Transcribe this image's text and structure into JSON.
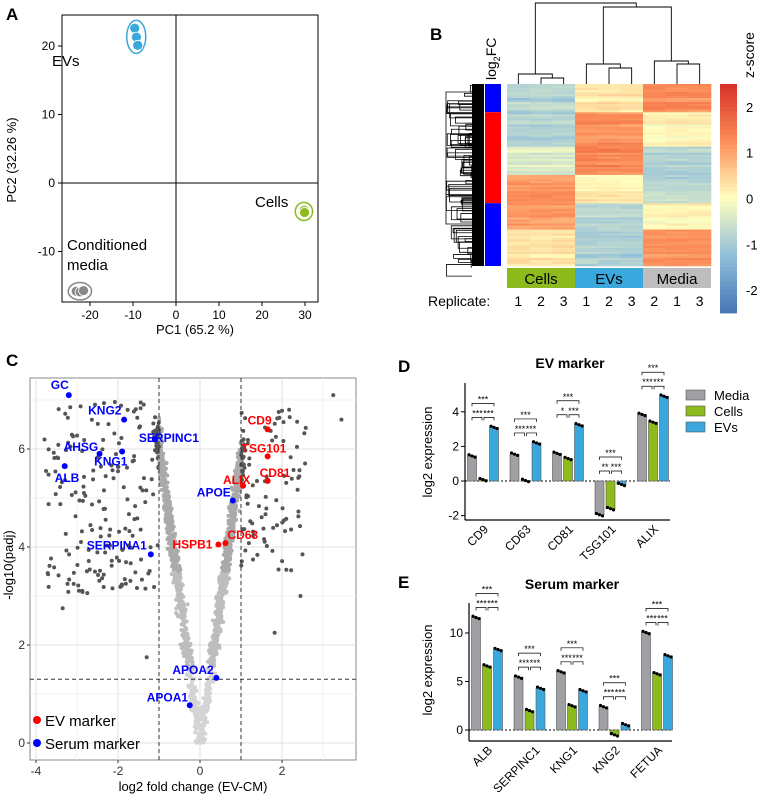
{
  "panels": {
    "a": "A",
    "b": "B",
    "c": "C",
    "d": "D",
    "e": "E"
  },
  "chart_data": [
    {
      "type": "scatter",
      "panel": "A",
      "xlabel": "PC1 (65.2 %)",
      "ylabel": "PC2 (32.26 %)",
      "xticks": [
        "-20",
        "-10",
        "0",
        "10",
        "20",
        "30"
      ],
      "yticks": [
        "20",
        "10",
        "0",
        "-10"
      ],
      "xlim": [
        -26,
        33
      ],
      "ylim": [
        -20,
        24.5
      ],
      "groups": [
        {
          "name": "EVs",
          "label": "EVs",
          "color": "#3aa8dc",
          "points": [
            [
              -9.6,
              22.6
            ],
            [
              -9.2,
              21.3
            ],
            [
              -8.9,
              20.1
            ]
          ]
        },
        {
          "name": "Cells",
          "label": "Cells",
          "color": "#8dbb1e",
          "points": [
            [
              29.6,
              -4.2
            ],
            [
              29.8,
              -4.0
            ],
            [
              29.9,
              -4.3
            ]
          ]
        },
        {
          "name": "Conditioned media",
          "label": "Conditioned",
          "label2": "media",
          "color": "#888888",
          "points": [
            [
              -23.2,
              -15.8
            ],
            [
              -22.3,
              -15.9
            ],
            [
              -21.5,
              -15.7
            ]
          ]
        }
      ]
    },
    {
      "type": "heatmap",
      "panel": "B",
      "fc_label": "log",
      "fc_sub": "2",
      "fc_label_end": "FC",
      "colorbar_title": "z-score",
      "colorbar_ticks": [
        "2",
        "1",
        "0",
        "-1",
        "-2"
      ],
      "colorbar_range": [
        -2.5,
        2.5
      ],
      "groups": [
        {
          "label": "Cells",
          "color": "#8dbb1e"
        },
        {
          "label": "EVs",
          "color": "#3aa8dc"
        },
        {
          "label": "Media",
          "color": "#bdbdbd"
        }
      ],
      "replicate_title": "Replicate:",
      "replicates": [
        "1",
        "2",
        "3",
        "1",
        "2",
        "3",
        "2",
        "1",
        "3"
      ],
      "fc_blocks": [
        {
          "from": 0.0,
          "to": 0.155,
          "color": "#0000ff"
        },
        {
          "from": 0.155,
          "to": 0.655,
          "color": "#ff0000"
        },
        {
          "from": 0.655,
          "to": 1.0,
          "color": "#0000ff"
        }
      ],
      "row_blocks": [
        {
          "from": 0.0,
          "to": 0.155,
          "z": [
            -0.8,
            0.3,
            1.3
          ]
        },
        {
          "from": 0.155,
          "to": 0.35,
          "z": [
            -0.9,
            1.2,
            0.1
          ]
        },
        {
          "from": 0.35,
          "to": 0.5,
          "z": [
            -0.4,
            1.3,
            -0.9
          ]
        },
        {
          "from": 0.5,
          "to": 0.655,
          "z": [
            1.1,
            0.1,
            -0.8
          ]
        },
        {
          "from": 0.655,
          "to": 0.8,
          "z": [
            1.1,
            -0.8,
            0.1
          ]
        },
        {
          "from": 0.8,
          "to": 1.0,
          "z": [
            0.3,
            -0.9,
            1.2
          ]
        }
      ]
    },
    {
      "type": "scatter",
      "panel": "C",
      "xlabel": "log2 fold change (EV-CM)",
      "ylabel": "-log10(padj)",
      "xticks": [
        "-4",
        "-2",
        "0",
        "2"
      ],
      "yticks": [
        "0",
        "2",
        "4",
        "6"
      ],
      "xlim": [
        -4.1,
        3.8
      ],
      "ylim": [
        -0.35,
        7.45
      ],
      "thresholds": {
        "x": [
          -1,
          1
        ],
        "y": 1.3
      },
      "legend": [
        {
          "label": "EV marker",
          "color": "#ff0000"
        },
        {
          "label": "Serum marker",
          "color": "#0000ff"
        }
      ],
      "labeled_points": [
        {
          "label": "GC",
          "x": -3.2,
          "y": 7.1,
          "type": "serum"
        },
        {
          "label": "KNG2",
          "x": -1.85,
          "y": 6.6,
          "type": "serum"
        },
        {
          "label": "AHSG",
          "x": -2.45,
          "y": 5.9,
          "type": "serum"
        },
        {
          "label": "KNG1",
          "x": -1.9,
          "y": 5.95,
          "type": "serum"
        },
        {
          "label": "ALB",
          "x": -3.3,
          "y": 5.65,
          "type": "serum"
        },
        {
          "label": "SERPINC1",
          "x": -1.1,
          "y": 6.2,
          "type": "serum"
        },
        {
          "label": "SERPINA1",
          "x": -1.2,
          "y": 3.85,
          "type": "serum"
        },
        {
          "label": "APOE",
          "x": 0.8,
          "y": 4.95,
          "type": "serum"
        },
        {
          "label": "APOA2",
          "x": 0.4,
          "y": 1.33,
          "type": "serum"
        },
        {
          "label": "APOA1",
          "x": -0.25,
          "y": 0.77,
          "type": "serum"
        },
        {
          "label": "CD9",
          "x": 1.65,
          "y": 6.4,
          "type": "ev"
        },
        {
          "label": "TSG101",
          "x": 1.65,
          "y": 5.85,
          "type": "ev"
        },
        {
          "label": "CD81",
          "x": 1.65,
          "y": 5.35,
          "type": "ev"
        },
        {
          "label": "ALIX",
          "x": 1.05,
          "y": 5.25,
          "type": "ev"
        },
        {
          "label": "CD63",
          "x": 0.62,
          "y": 4.08,
          "type": "ev"
        },
        {
          "label": "HSPB1",
          "x": 0.45,
          "y": 4.05,
          "type": "ev"
        }
      ]
    },
    {
      "type": "bar",
      "panel": "D",
      "title": "EV marker",
      "ylabel": "log2 expression",
      "yticks": [
        -2,
        0,
        2,
        4
      ],
      "ylim": [
        -2.3,
        5.5
      ],
      "series_names": [
        "Media",
        "Cells",
        "EVs"
      ],
      "series_colors": [
        "#a0a0a4",
        "#8dbb1e",
        "#3aa8dc"
      ],
      "categories": [
        "CD9",
        "CD63",
        "CD81",
        "TSG101",
        "ALIX"
      ],
      "values": [
        [
          1.45,
          0.08,
          3.1
        ],
        [
          1.55,
          0.03,
          2.2
        ],
        [
          1.6,
          1.3,
          3.25
        ],
        [
          -1.95,
          -1.6,
          -0.2
        ],
        [
          3.85,
          3.4,
          4.9
        ]
      ],
      "significance": [
        [
          "***",
          "***",
          "***"
        ],
        [
          "***",
          "***",
          "***"
        ],
        [
          "*",
          "***",
          "***"
        ],
        [
          "**",
          "***",
          "***"
        ],
        [
          "***",
          "***",
          "***"
        ]
      ]
    },
    {
      "type": "bar",
      "panel": "E",
      "title": "Serum marker",
      "ylabel": "log2 expression",
      "yticks": [
        0,
        5,
        10
      ],
      "ylim": [
        -1,
        13
      ],
      "series_names": [
        "Media",
        "Cells",
        "EVs"
      ],
      "series_colors": [
        "#a0a0a4",
        "#8dbb1e",
        "#3aa8dc"
      ],
      "categories": [
        "ALB",
        "SERPINC1",
        "KNG1",
        "KNG2",
        "FETUA"
      ],
      "values": [
        [
          11.6,
          6.6,
          8.3
        ],
        [
          5.45,
          2.0,
          4.3
        ],
        [
          6.0,
          2.5,
          4.05
        ],
        [
          2.4,
          -0.5,
          0.55
        ],
        [
          10.05,
          5.8,
          7.65
        ]
      ],
      "significance": [
        [
          "***",
          "***",
          "***"
        ],
        [
          "***",
          "***",
          "***"
        ],
        [
          "***",
          "***",
          "***"
        ],
        [
          "***",
          "***",
          "***"
        ],
        [
          "***",
          "***",
          "***"
        ]
      ]
    }
  ]
}
